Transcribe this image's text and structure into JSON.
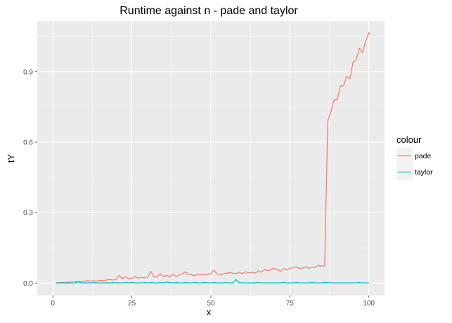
{
  "chart_data": {
    "type": "line",
    "title": "Runtime against n - pade and taylor",
    "xlabel": "x",
    "ylabel": "tY",
    "xlim": [
      -4.95,
      104.95
    ],
    "ylim": [
      -0.053,
      1.115
    ],
    "xticks": [
      0,
      25,
      50,
      75,
      100
    ],
    "yticks": [
      0.0,
      0.3,
      0.6,
      0.9
    ],
    "ytick_labels": [
      "0.0",
      "0.3",
      "0.6",
      "0.9"
    ],
    "xtick_labels": [
      "0",
      "25",
      "50",
      "75",
      "100"
    ],
    "grid": true,
    "legend": {
      "title": "colour",
      "position": "right"
    },
    "series": [
      {
        "name": "pade",
        "color": "#F8766D",
        "x": [
          1,
          2,
          3,
          4,
          5,
          6,
          7,
          8,
          9,
          10,
          11,
          12,
          13,
          14,
          15,
          16,
          17,
          18,
          19,
          20,
          21,
          22,
          23,
          24,
          25,
          26,
          27,
          28,
          29,
          30,
          31,
          32,
          33,
          34,
          35,
          36,
          37,
          38,
          39,
          40,
          41,
          42,
          43,
          44,
          45,
          46,
          47,
          48,
          49,
          50,
          51,
          52,
          53,
          54,
          55,
          56,
          57,
          58,
          59,
          60,
          61,
          62,
          63,
          64,
          65,
          66,
          67,
          68,
          69,
          70,
          71,
          72,
          73,
          74,
          75,
          76,
          77,
          78,
          79,
          80,
          81,
          82,
          83,
          84,
          85,
          86,
          87,
          88,
          89,
          90,
          91,
          92,
          93,
          94,
          95,
          96,
          97,
          98,
          99,
          100
        ],
        "values": [
          0.002,
          0.002,
          0.003,
          0.003,
          0.004,
          0.005,
          0.006,
          0.007,
          0.007,
          0.008,
          0.01,
          0.009,
          0.01,
          0.009,
          0.011,
          0.011,
          0.013,
          0.015,
          0.013,
          0.016,
          0.033,
          0.018,
          0.028,
          0.018,
          0.02,
          0.028,
          0.021,
          0.024,
          0.022,
          0.026,
          0.05,
          0.026,
          0.028,
          0.04,
          0.027,
          0.033,
          0.027,
          0.038,
          0.028,
          0.035,
          0.04,
          0.048,
          0.036,
          0.035,
          0.032,
          0.037,
          0.036,
          0.038,
          0.036,
          0.041,
          0.055,
          0.037,
          0.035,
          0.04,
          0.042,
          0.045,
          0.042,
          0.04,
          0.046,
          0.04,
          0.048,
          0.044,
          0.046,
          0.042,
          0.052,
          0.046,
          0.058,
          0.052,
          0.058,
          0.063,
          0.058,
          0.05,
          0.062,
          0.056,
          0.063,
          0.066,
          0.07,
          0.062,
          0.064,
          0.07,
          0.062,
          0.068,
          0.066,
          0.076,
          0.072,
          0.073,
          0.69,
          0.73,
          0.78,
          0.78,
          0.84,
          0.84,
          0.88,
          0.87,
          0.94,
          0.95,
          1.0,
          0.98,
          1.03,
          1.065
        ],
        "extra_point": {
          "x": 100,
          "value": 1.06
        }
      },
      {
        "name": "taylor",
        "color": "#00BFC4",
        "x": [
          1,
          2,
          3,
          4,
          5,
          6,
          7,
          8,
          9,
          10,
          11,
          12,
          13,
          14,
          15,
          16,
          17,
          18,
          19,
          20,
          21,
          22,
          23,
          24,
          25,
          26,
          27,
          28,
          29,
          30,
          31,
          32,
          33,
          34,
          35,
          36,
          37,
          38,
          39,
          40,
          41,
          42,
          43,
          44,
          45,
          46,
          47,
          48,
          49,
          50,
          51,
          52,
          53,
          54,
          55,
          56,
          57,
          58,
          59,
          60,
          61,
          62,
          63,
          64,
          65,
          66,
          67,
          68,
          69,
          70,
          71,
          72,
          73,
          74,
          75,
          76,
          77,
          78,
          79,
          80,
          81,
          82,
          83,
          84,
          85,
          86,
          87,
          88,
          89,
          90,
          91,
          92,
          93,
          94,
          95,
          96,
          97,
          98,
          99,
          100
        ],
        "values": [
          0.001,
          0.001,
          0.001,
          0.001,
          0.001,
          0.0,
          0.001,
          0.005,
          0.001,
          0.001,
          0.001,
          0.001,
          0.002,
          0.001,
          0.001,
          0.001,
          0.001,
          0.001,
          0.002,
          0.001,
          0.001,
          0.001,
          0.002,
          0.001,
          0.002,
          0.001,
          0.001,
          0.001,
          0.002,
          0.001,
          0.002,
          0.001,
          0.001,
          0.002,
          0.001,
          0.004,
          0.002,
          0.001,
          0.002,
          0.001,
          0.001,
          0.002,
          0.001,
          0.001,
          0.002,
          0.001,
          0.001,
          0.002,
          0.001,
          0.001,
          0.002,
          0.001,
          0.001,
          0.001,
          0.002,
          0.001,
          0.001,
          0.015,
          0.002,
          0.001,
          0.001,
          0.001,
          0.001,
          0.001,
          0.002,
          0.001,
          0.001,
          0.001,
          0.001,
          0.001,
          0.001,
          0.001,
          0.002,
          0.001,
          0.001,
          0.001,
          0.002,
          0.001,
          0.001,
          0.001,
          0.001,
          0.002,
          0.001,
          0.001,
          0.001,
          0.003,
          0.002,
          0.001,
          0.001,
          0.001,
          0.001,
          0.001,
          0.001,
          0.001,
          0.001,
          0.001,
          0.002,
          0.001,
          0.001,
          0.001
        ]
      }
    ]
  }
}
